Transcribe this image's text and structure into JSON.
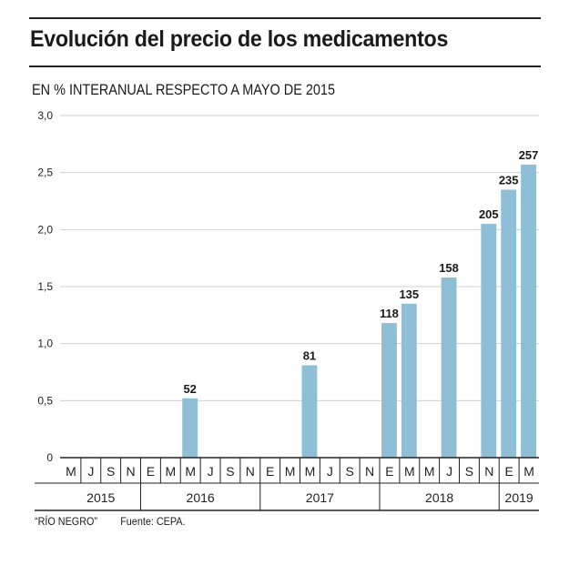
{
  "chart_data": {
    "type": "bar",
    "title": "Evolución del precio de los medicamentos",
    "subtitle": "EN % INTERANUAL RESPECTO A MAYO DE 2015",
    "xlabel": "",
    "ylabel": "",
    "ylim": [
      0,
      3.0
    ],
    "yticks": [
      0,
      0.5,
      1.0,
      1.5,
      2.0,
      2.5,
      3.0
    ],
    "ytick_labels": [
      "0",
      "0,5",
      "1,0",
      "1,5",
      "2,0",
      "2,5",
      "3,0"
    ],
    "grid": true,
    "categories": [
      "M",
      "J",
      "S",
      "N",
      "E",
      "M",
      "M",
      "J",
      "S",
      "N",
      "E",
      "M",
      "M",
      "J",
      "S",
      "N",
      "E",
      "M",
      "M",
      "J",
      "S",
      "N",
      "E",
      "M"
    ],
    "years": [
      {
        "label": "2015",
        "start": 0,
        "count": 4
      },
      {
        "label": "2016",
        "start": 4,
        "count": 6
      },
      {
        "label": "2017",
        "start": 10,
        "count": 6
      },
      {
        "label": "2018",
        "start": 16,
        "count": 6
      },
      {
        "label": "2019",
        "start": 22,
        "count": 2
      }
    ],
    "bars": [
      {
        "index": 6,
        "value": 0.52,
        "label": "52"
      },
      {
        "index": 12,
        "value": 0.81,
        "label": "81"
      },
      {
        "index": 16,
        "value": 1.18,
        "label": "118"
      },
      {
        "index": 17,
        "value": 1.35,
        "label": "135"
      },
      {
        "index": 19,
        "value": 1.58,
        "label": "158"
      },
      {
        "index": 21,
        "value": 2.05,
        "label": "205"
      },
      {
        "index": 22,
        "value": 2.35,
        "label": "235"
      },
      {
        "index": 23,
        "value": 2.57,
        "label": "257"
      }
    ],
    "bar_color": "#8fbfd7"
  },
  "footer": {
    "credit": "“RÍO NEGRO”",
    "source": "Fuente: CEPA."
  }
}
